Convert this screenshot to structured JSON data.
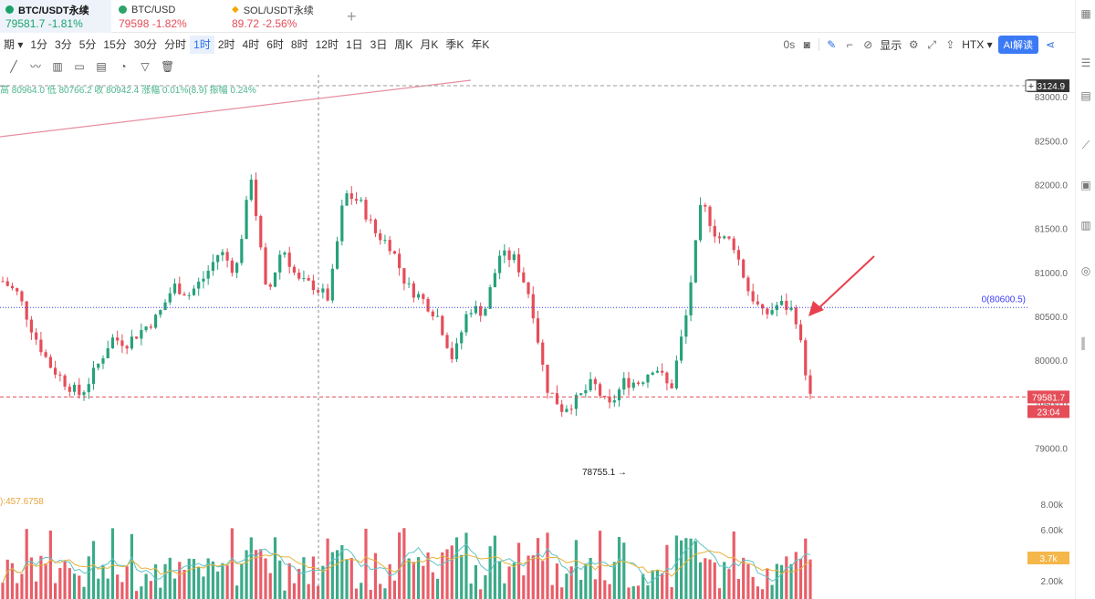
{
  "tabs": [
    {
      "symbol": "BTC/USDT永续",
      "price_change": "79581.7  -1.81%",
      "color": "#18a36a"
    },
    {
      "symbol": "BTC/USD",
      "price_change": "79598  -1.82%",
      "color": "#f2a900"
    },
    {
      "symbol": "SOL/USDT永续",
      "price_change": "89.72  -2.56%",
      "color": "#f2a900"
    }
  ],
  "intervals": [
    "期 ▾",
    "1分",
    "3分",
    "5分",
    "15分",
    "30分",
    "分时",
    "1时",
    "2时",
    "4时",
    "6时",
    "8时",
    "12时",
    "1日",
    "3日",
    "周K",
    "月K",
    "季K",
    "年K"
  ],
  "selected_interval": "1时",
  "toolbar": {
    "timer": "0s",
    "display": "显示",
    "exchange": "HTX ▾",
    "ai_label": "AI解读"
  },
  "ohlc_legend": "高 80964.0  低 80766.2  收 80942.4  涨幅 0.01%(8.9)  振幅 0.24%",
  "volume_ma_label": "):457.6758",
  "price_labels": {
    "top_line": "83124.9",
    "last_price": "79581.7",
    "countdown": "23:04",
    "fib_level": "0(80600.5)",
    "low_marker": "78755.1",
    "volume_current": "3.7k"
  },
  "chart_data": {
    "type": "candlestick",
    "symbol": "BTC/USDT永续",
    "interval": "1时",
    "y_axis_ticks": [
      83000,
      82500,
      82000,
      81500,
      81000,
      80500,
      80000,
      79500,
      79000
    ],
    "y_axis_tick_labels": [
      "83000.0",
      "82500.0",
      "82000.0",
      "81500.0",
      "81000.0",
      "80500.0",
      "80000.0",
      "79500.0",
      "79000.0"
    ],
    "volume_axis_ticks": [
      "8.00k",
      "6.00k",
      "2.00k"
    ],
    "ylim": [
      78600,
      83250
    ],
    "horizontal_lines": [
      {
        "name": "top-line",
        "value": 83124.9,
        "style": "dashed",
        "color": "#999999"
      },
      {
        "name": "fib-0",
        "value": 80600.5,
        "style": "dotted",
        "color": "#3b3bf5"
      },
      {
        "name": "last-price",
        "value": 79581.7,
        "style": "dashed",
        "color": "#e54d59"
      }
    ],
    "close_path": [
      80900,
      80750,
      80300,
      79950,
      79750,
      79600,
      79900,
      80250,
      80200,
      80350,
      80500,
      80850,
      80750,
      80950,
      81250,
      81000,
      82100,
      80700,
      81300,
      80900,
      80850,
      80700,
      81900,
      81800,
      81450,
      81300,
      80850,
      80700,
      80500,
      80000,
      80600,
      80550,
      81200,
      81150,
      80700,
      79700,
      79450,
      79550,
      79750,
      79450,
      79750,
      79750,
      79950,
      79650,
      80500,
      81800,
      81400,
      81350,
      80800,
      80500,
      80650,
      80550,
      79580
    ],
    "colors": {
      "up": "#26a17b",
      "down": "#e54d59",
      "fib": "#3b3bf5",
      "trendline": "#e88ea0"
    }
  }
}
